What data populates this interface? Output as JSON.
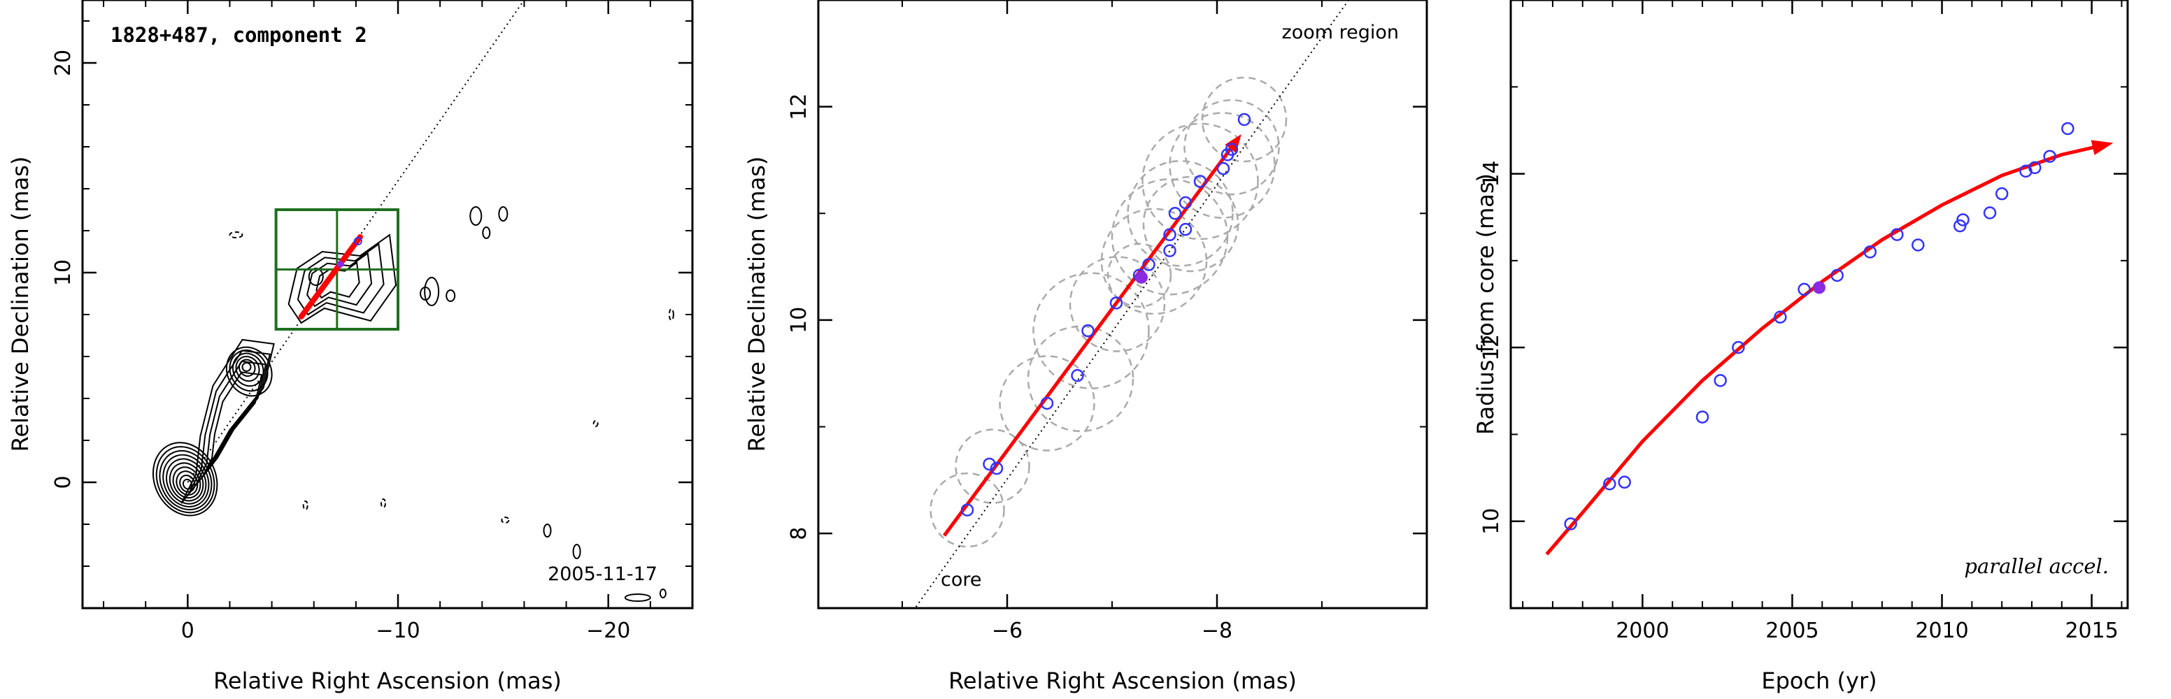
{
  "chart_data": [
    {
      "type": "contour",
      "title": "1828+487, component 2",
      "xlabel": "Relative Right Ascension (mas)",
      "ylabel": "Relative Declination (mas)",
      "xlim": [
        5,
        -24
      ],
      "ylim": [
        -6,
        23
      ],
      "x_ticks": [
        0,
        -10,
        -20
      ],
      "x_tick_labels": [
        "0",
        "−10",
        "−20"
      ],
      "y_ticks": [
        0,
        10,
        20
      ],
      "epoch_label": "2005-11-17",
      "direction_line": {
        "from": [
          0,
          0
        ],
        "to": [
          -16,
          23
        ]
      },
      "zoom_box": {
        "x": [
          -4.2,
          -10.0
        ],
        "y": [
          7.3,
          13.0
        ]
      },
      "trajectory": {
        "from": [
          -5.4,
          7.9
        ],
        "to": [
          -8.2,
          11.7
        ]
      },
      "component_position": [
        -7.25,
        10.4
      ],
      "colors": {
        "contour": "#000000",
        "box": "#1f6e1f",
        "fit": "#ff0000",
        "points": "#3333ff",
        "line": "#000000"
      }
    },
    {
      "type": "scatter",
      "xlabel": "Relative Right Ascension (mas)",
      "ylabel": "Relative Declination (mas)",
      "xlim": [
        -4.2,
        -10.0
      ],
      "ylim": [
        7.3,
        13.0
      ],
      "x_ticks": [
        -6,
        -8
      ],
      "x_tick_labels": [
        "−6",
        "−8"
      ],
      "y_ticks": [
        8,
        10,
        12
      ],
      "annotations": {
        "zoom_region": "zoom region",
        "core": "core"
      },
      "direction_line": {
        "from": [
          -5.05,
          7.2
        ],
        "to": [
          -9.4,
          13.2
        ]
      },
      "fit_line": {
        "from": [
          -5.4,
          7.98
        ],
        "to": [
          -8.2,
          11.7
        ]
      },
      "highlight_point": [
        -7.28,
        10.4
      ],
      "points": [
        [
          -5.62,
          8.22
        ],
        [
          -5.83,
          8.65
        ],
        [
          -5.9,
          8.61
        ],
        [
          -6.38,
          9.22
        ],
        [
          -6.67,
          9.48
        ],
        [
          -6.77,
          9.9
        ],
        [
          -7.04,
          10.16
        ],
        [
          -7.26,
          10.42
        ],
        [
          -7.35,
          10.52
        ],
        [
          -7.55,
          10.65
        ],
        [
          -7.55,
          10.8
        ],
        [
          -7.6,
          11.0
        ],
        [
          -7.7,
          11.1
        ],
        [
          -7.7,
          10.85
        ],
        [
          -7.84,
          11.3
        ],
        [
          -8.06,
          11.42
        ],
        [
          -8.1,
          11.55
        ],
        [
          -8.14,
          11.6
        ],
        [
          -8.26,
          11.88
        ]
      ],
      "uncertainty_circles": [
        [
          -5.62,
          8.22,
          0.35
        ],
        [
          -5.86,
          8.63,
          0.35
        ],
        [
          -6.38,
          9.22,
          0.45
        ],
        [
          -6.7,
          9.45,
          0.5
        ],
        [
          -6.8,
          9.9,
          0.55
        ],
        [
          -7.05,
          10.15,
          0.45
        ],
        [
          -7.26,
          10.42,
          0.3
        ],
        [
          -7.4,
          10.55,
          0.5
        ],
        [
          -7.55,
          10.78,
          0.55
        ],
        [
          -7.65,
          11.0,
          0.5
        ],
        [
          -7.75,
          10.9,
          0.45
        ],
        [
          -7.84,
          11.3,
          0.55
        ],
        [
          -8.05,
          11.45,
          0.5
        ],
        [
          -8.14,
          11.62,
          0.45
        ],
        [
          -8.26,
          11.88,
          0.4
        ]
      ],
      "colors": {
        "points": "#3333ff",
        "highlight": "#8a2be2",
        "fit": "#ff0000",
        "circles": "#aaaaaa"
      }
    },
    {
      "type": "scatter",
      "xlabel": "Epoch (yr)",
      "ylabel": "Radius from core (mas)",
      "xlim": [
        1995.6,
        2016.2
      ],
      "ylim": [
        9.0,
        16.0
      ],
      "x_ticks": [
        2000,
        2005,
        2010,
        2015
      ],
      "y_ticks": [
        10,
        12,
        14
      ],
      "annotation": "parallel accel.",
      "points": [
        [
          1997.6,
          9.97
        ],
        [
          1998.9,
          10.43
        ],
        [
          1999.4,
          10.45
        ],
        [
          2002.0,
          11.2
        ],
        [
          2002.6,
          11.62
        ],
        [
          2003.2,
          12.0
        ],
        [
          2004.6,
          12.35
        ],
        [
          2005.4,
          12.67
        ],
        [
          2006.5,
          12.83
        ],
        [
          2007.6,
          13.1
        ],
        [
          2008.5,
          13.3
        ],
        [
          2009.2,
          13.18
        ],
        [
          2010.6,
          13.4
        ],
        [
          2010.7,
          13.47
        ],
        [
          2011.6,
          13.55
        ],
        [
          2012.0,
          13.77
        ],
        [
          2012.8,
          14.03
        ],
        [
          2013.1,
          14.07
        ],
        [
          2013.6,
          14.2
        ],
        [
          2014.2,
          14.52
        ]
      ],
      "highlight_point": [
        2005.9,
        12.69
      ],
      "fit_curve": [
        [
          1996.8,
          9.62
        ],
        [
          1998.0,
          10.1
        ],
        [
          2000.0,
          10.92
        ],
        [
          2002.0,
          11.62
        ],
        [
          2004.0,
          12.22
        ],
        [
          2006.0,
          12.76
        ],
        [
          2008.0,
          13.24
        ],
        [
          2010.0,
          13.64
        ],
        [
          2012.0,
          13.98
        ],
        [
          2014.0,
          14.22
        ],
        [
          2015.4,
          14.33
        ]
      ],
      "colors": {
        "points": "#3333ff",
        "highlight": "#8a2be2",
        "fit": "#ff0000"
      }
    }
  ]
}
